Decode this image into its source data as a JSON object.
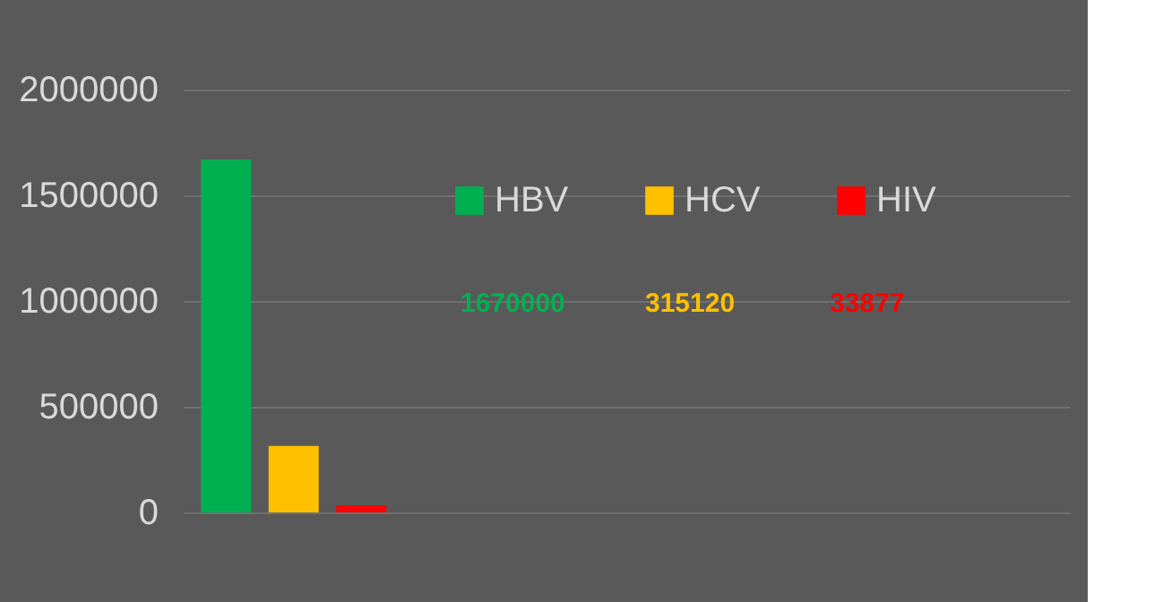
{
  "chart_data": {
    "type": "bar",
    "categories": [
      null,
      null,
      null,
      null
    ],
    "series": [
      {
        "name": "HBV",
        "color": "#00b050",
        "values": [
          1670000,
          null,
          null,
          null
        ]
      },
      {
        "name": "HCV",
        "color": "#ffc000",
        "values": [
          315120,
          null,
          null,
          null
        ]
      },
      {
        "name": "HIV",
        "color": "#ff0000",
        "values": [
          33877,
          null,
          null,
          null
        ]
      }
    ],
    "annotations": [
      "1670000",
      "315120",
      "33877"
    ],
    "ylim": [
      0,
      2000000
    ],
    "yticks": [
      0,
      500000,
      1000000,
      1500000,
      2000000
    ],
    "grid": "y",
    "legend": "top right"
  }
}
